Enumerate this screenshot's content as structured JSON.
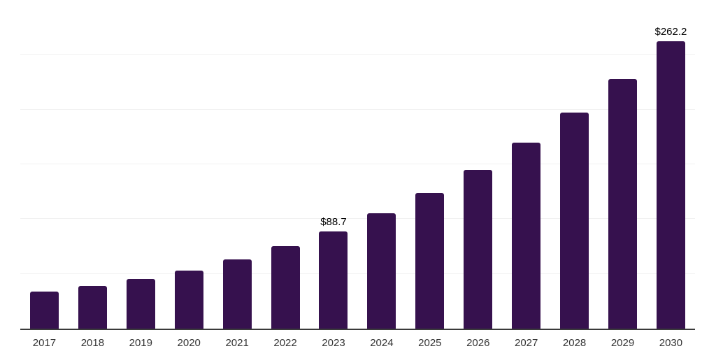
{
  "page": {
    "background_color": "#ffffff"
  },
  "chart_data": {
    "type": "bar",
    "title": "",
    "xlabel": "",
    "ylabel": "",
    "categories": [
      "2017",
      "2018",
      "2019",
      "2020",
      "2021",
      "2022",
      "2023",
      "2024",
      "2025",
      "2026",
      "2027",
      "2028",
      "2029",
      "2030"
    ],
    "values": [
      33.8,
      38.7,
      45.1,
      52.9,
      63.3,
      75.1,
      88.7,
      105.5,
      124.0,
      145.1,
      169.7,
      197.4,
      228.2,
      262.2
    ],
    "data_labels": {
      "2023": "$88.7",
      "2030": "$262.2"
    },
    "ylim": [
      0,
      300
    ],
    "gridline_values": [
      50,
      100,
      150,
      200,
      250,
      300
    ],
    "grid": "horizontal-only",
    "legend": "none",
    "y_axis_tick_labels": "none",
    "bar_color": "#36114e",
    "axis_line_color": "#3a3a3a",
    "gridline_color": "#f1f1f1",
    "data_label_color": "#000000",
    "tick_label_color": "#333333"
  }
}
